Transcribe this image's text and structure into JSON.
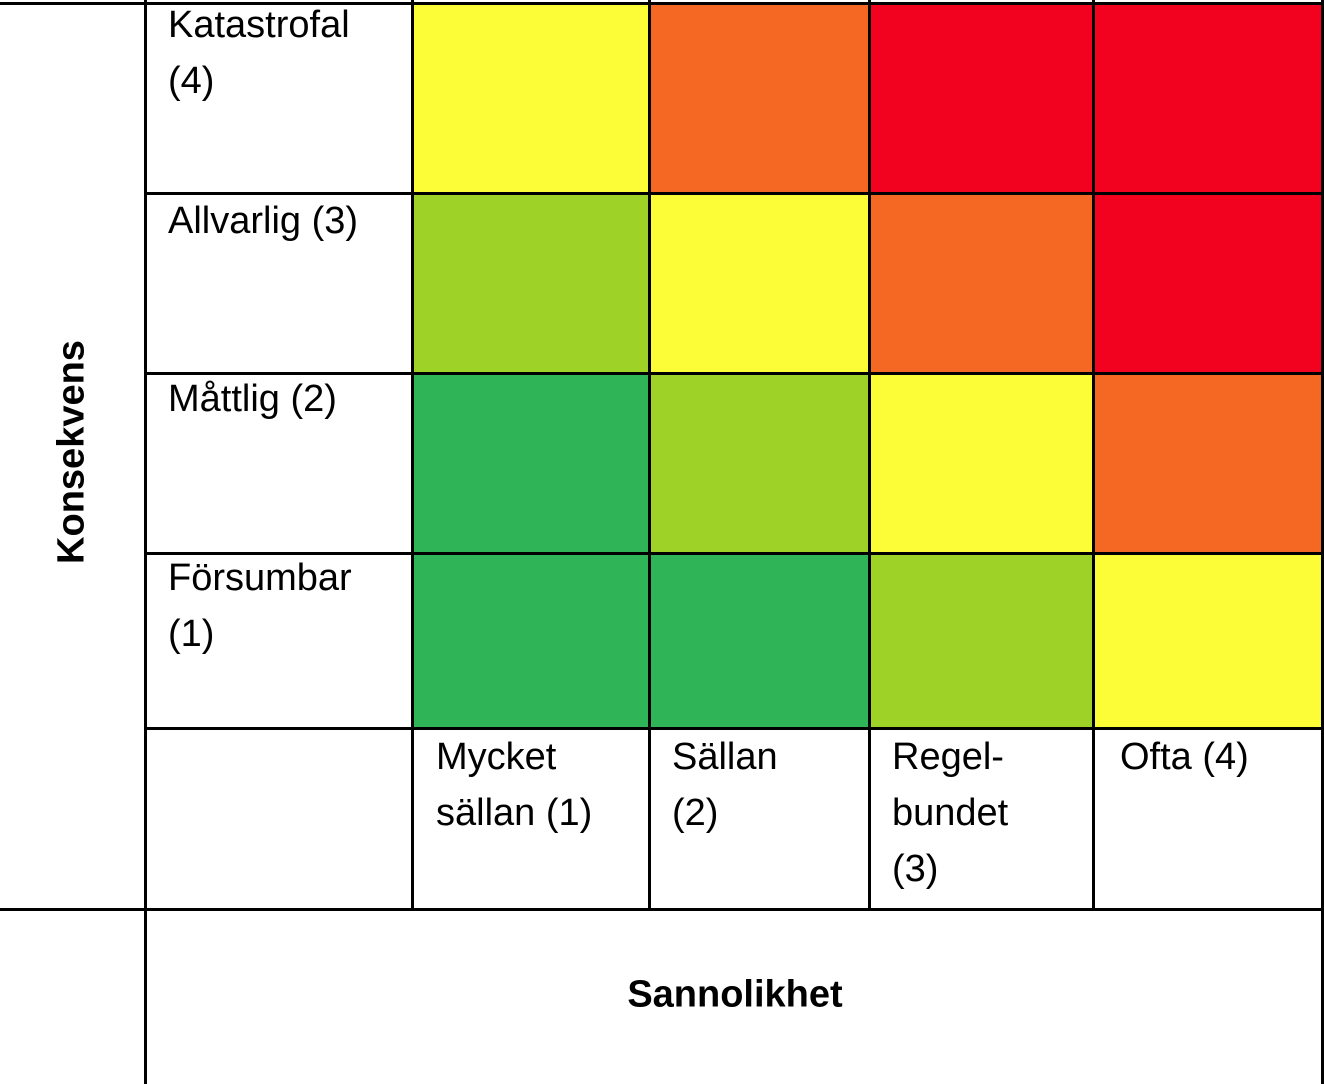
{
  "matrix": {
    "y_axis_title": "Konsekvens",
    "x_axis_title": "Sannolikhet",
    "row_labels": [
      "Katastrofal\n(4)",
      "Allvarlig (3)",
      "Måttlig (2)",
      "Försumbar\n(1)"
    ],
    "column_labels": [
      "Mycket\nsällan (1)",
      "Sällan\n(2)",
      "Regel-\nbundet\n(3)",
      "Ofta (4)"
    ],
    "risk_colors": {
      "green": "#2fb457",
      "yellowgreen": "#9ed226",
      "yellow": "#fcfd37",
      "orange": "#f56823",
      "red": "#f3021f"
    },
    "grid_colors": [
      [
        "yellow",
        "orange",
        "red",
        "red"
      ],
      [
        "yellowgreen",
        "yellow",
        "orange",
        "red"
      ],
      [
        "green",
        "yellowgreen",
        "yellow",
        "orange"
      ],
      [
        "green",
        "green",
        "yellowgreen",
        "yellow"
      ]
    ]
  }
}
